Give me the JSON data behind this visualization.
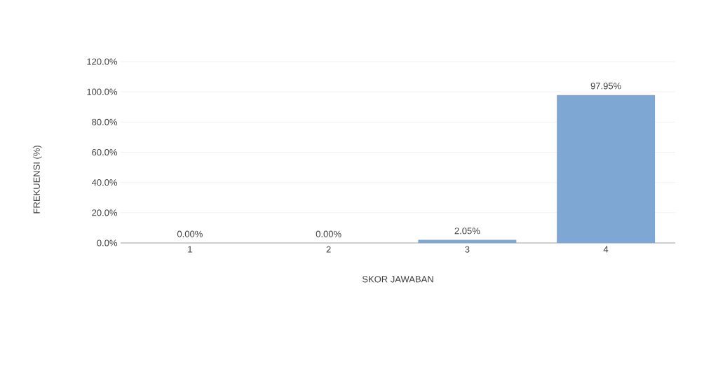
{
  "chart_data": {
    "type": "bar",
    "xlabel": "SKOR JAWABAN",
    "ylabel": "FREKUENSI (%)",
    "categories": [
      "1",
      "2",
      "3",
      "4"
    ],
    "values": [
      0,
      0,
      2.05,
      97.95
    ],
    "value_labels": [
      "0.00%",
      "0.00%",
      "2.05%",
      "97.95%"
    ],
    "color": "#7fa7d3",
    "ylim": [
      0,
      120
    ],
    "yticks": [
      {
        "value": 0,
        "label": "0.0%"
      },
      {
        "value": 20,
        "label": "20.0%"
      },
      {
        "value": 40,
        "label": "40.0%"
      },
      {
        "value": 60,
        "label": "60.0%"
      },
      {
        "value": 80,
        "label": "80.0%"
      },
      {
        "value": 100,
        "label": "100.0%"
      },
      {
        "value": 120,
        "label": "120.0%"
      }
    ],
    "grid": "y"
  }
}
